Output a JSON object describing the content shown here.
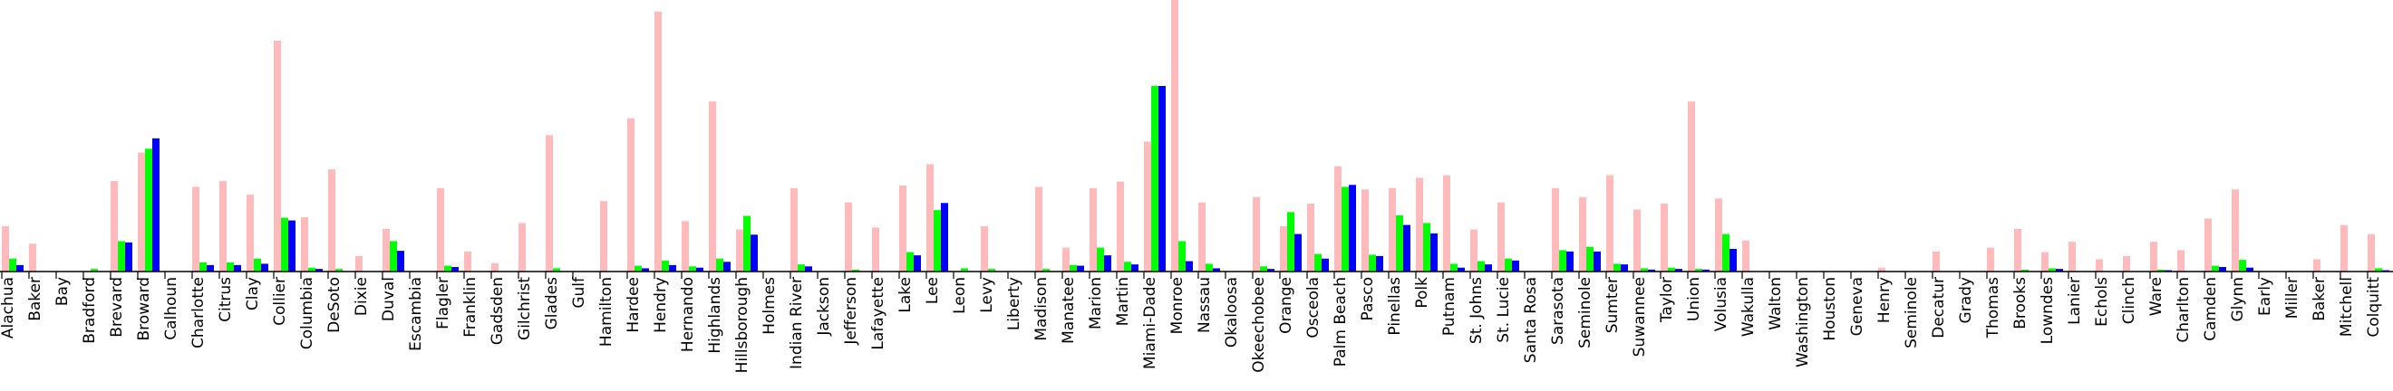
{
  "chart_data": {
    "type": "bar",
    "xlabel": "",
    "ylabel": "",
    "ylim": [
      0,
      420
    ],
    "grid": false,
    "legend": "none",
    "categories": [
      "Alachua",
      "Baker",
      "Bay",
      "Bradford",
      "Brevard",
      "Broward",
      "Calhoun",
      "Charlotte",
      "Citrus",
      "Clay",
      "Collier",
      "Columbia",
      "DeSoto",
      "Dixie",
      "Duval",
      "Escambia",
      "Flagler",
      "Franklin",
      "Gadsden",
      "Gilchrist",
      "Glades",
      "Gulf",
      "Hamilton",
      "Hardee",
      "Hendry",
      "Hernando",
      "Highlands",
      "Hillsborough",
      "Holmes",
      "Indian River",
      "Jackson",
      "Jefferson",
      "Lafayette",
      "Lake",
      "Lee",
      "Leon",
      "Levy",
      "Liberty",
      "Madison",
      "Manatee",
      "Marion",
      "Martin",
      "Miami-Dade",
      "Monroe",
      "Nassau",
      "Okaloosa",
      "Okeechobee",
      "Orange",
      "Osceola",
      "Palm Beach",
      "Pasco",
      "Pinellas",
      "Polk",
      "Putnam",
      "St. Johns",
      "St. Lucie",
      "Santa Rosa",
      "Sarasota",
      "Seminole",
      "Sumter",
      "Suwannee",
      "Taylor",
      "Union",
      "Volusia",
      "Wakulla",
      "Walton",
      "Washington",
      "Houston",
      "Geneva",
      "Henry",
      "Seminole",
      "Decatur",
      "Grady",
      "Thomas",
      "Brooks",
      "Lowndes",
      "Lanier",
      "Echols",
      "Clinch",
      "Ware",
      "Charlton",
      "Camden",
      "Glynn",
      "Early",
      "Miller",
      "Baker",
      "Mitchell",
      "Colquitt"
    ],
    "series": [
      {
        "color": "#ffbbbb",
        "values": [
          70,
          43,
          0,
          0,
          140,
          184,
          0,
          131,
          140,
          119,
          357,
          84,
          158,
          24,
          66,
          0,
          129,
          31,
          13,
          75,
          211,
          0,
          109,
          237,
          402,
          78,
          263,
          65,
          0,
          129,
          0,
          107,
          68,
          133,
          166,
          0,
          70,
          0,
          131,
          37,
          129,
          139,
          201,
          420,
          107,
          0,
          115,
          70,
          105,
          163,
          127,
          129,
          145,
          149,
          65,
          107,
          0,
          129,
          115,
          149,
          96,
          105,
          263,
          113,
          48,
          0,
          0,
          0,
          0,
          6,
          0,
          31,
          0,
          37,
          66,
          30,
          46,
          19,
          24,
          46,
          33,
          82,
          127,
          0,
          0,
          19,
          72,
          58
        ]
      },
      {
        "color": "#00ff00",
        "values": [
          20,
          0,
          0,
          4,
          47,
          190,
          0,
          14,
          14,
          20,
          83,
          6,
          4,
          0,
          47,
          0,
          9,
          0,
          0,
          0,
          5,
          0,
          0,
          9,
          17,
          8,
          20,
          86,
          0,
          11,
          0,
          3,
          0,
          30,
          95,
          5,
          4,
          0,
          4,
          10,
          37,
          15,
          287,
          47,
          12,
          0,
          8,
          92,
          27,
          131,
          26,
          87,
          75,
          12,
          16,
          20,
          0,
          33,
          38,
          12,
          5,
          6,
          4,
          58,
          0,
          0,
          0,
          0,
          0,
          0,
          0,
          0,
          0,
          0,
          3,
          5,
          0,
          0,
          0,
          3,
          0,
          9,
          18,
          0,
          0,
          0,
          0,
          5
        ]
      },
      {
        "color": "#0000ff",
        "values": [
          10,
          0,
          0,
          0,
          45,
          206,
          0,
          10,
          10,
          12,
          79,
          4,
          0,
          0,
          32,
          0,
          7,
          0,
          0,
          0,
          0,
          0,
          0,
          5,
          10,
          6,
          15,
          57,
          0,
          8,
          0,
          0,
          0,
          25,
          106,
          0,
          0,
          0,
          0,
          9,
          25,
          11,
          287,
          16,
          5,
          0,
          4,
          58,
          20,
          134,
          24,
          72,
          59,
          6,
          11,
          17,
          0,
          31,
          31,
          11,
          3,
          4,
          3,
          35,
          0,
          0,
          0,
          0,
          0,
          0,
          0,
          0,
          0,
          0,
          0,
          4,
          0,
          0,
          0,
          2,
          0,
          7,
          6,
          0,
          0,
          0,
          0,
          2
        ]
      }
    ]
  }
}
